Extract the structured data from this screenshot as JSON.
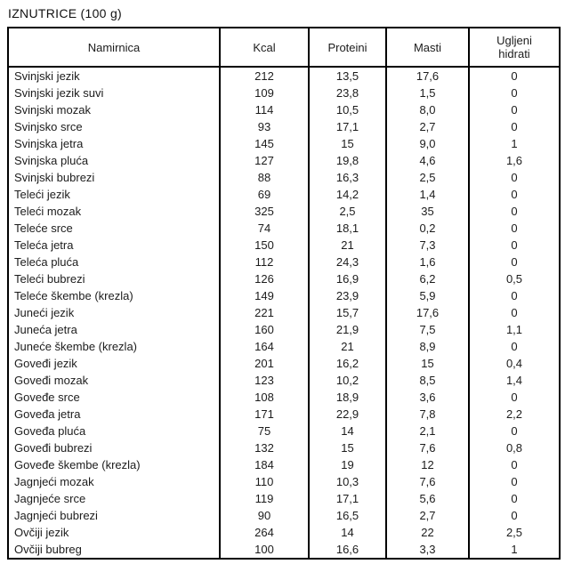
{
  "title": "IZNUTRICE (100 g)",
  "table": {
    "columns": [
      "Namirnica",
      "Kcal",
      "Proteini",
      "Masti",
      "Ugljeni hidrati"
    ],
    "rows": [
      [
        "Svinjski jezik",
        "212",
        "13,5",
        "17,6",
        "0"
      ],
      [
        "Svinjski jezik suvi",
        "109",
        "23,8",
        "1,5",
        "0"
      ],
      [
        "Svinjski mozak",
        "114",
        "10,5",
        "8,0",
        "0"
      ],
      [
        "Svinjsko srce",
        "93",
        "17,1",
        "2,7",
        "0"
      ],
      [
        "Svinjska jetra",
        "145",
        "15",
        "9,0",
        "1"
      ],
      [
        "Svinjska pluća",
        "127",
        "19,8",
        "4,6",
        "1,6"
      ],
      [
        "Svinjski bubrezi",
        "88",
        "16,3",
        "2,5",
        "0"
      ],
      [
        "Teleći jezik",
        "69",
        "14,2",
        "1,4",
        "0"
      ],
      [
        "Teleći mozak",
        "325",
        "2,5",
        "35",
        "0"
      ],
      [
        "Teleće srce",
        "74",
        "18,1",
        "0,2",
        "0"
      ],
      [
        "Teleća jetra",
        "150",
        "21",
        "7,3",
        "0"
      ],
      [
        "Teleća pluća",
        "112",
        "24,3",
        "1,6",
        "0"
      ],
      [
        "Teleći bubrezi",
        "126",
        "16,9",
        "6,2",
        "0,5"
      ],
      [
        "Teleće škembe (krezla)",
        "149",
        "23,9",
        "5,9",
        "0"
      ],
      [
        "Juneći jezik",
        "221",
        "15,7",
        "17,6",
        "0"
      ],
      [
        "Juneća jetra",
        "160",
        "21,9",
        "7,5",
        "1,1"
      ],
      [
        "Juneće škembe (krezla)",
        "164",
        "21",
        "8,9",
        "0"
      ],
      [
        "Goveđi jezik",
        "201",
        "16,2",
        "15",
        "0,4"
      ],
      [
        "Goveđi mozak",
        "123",
        "10,2",
        "8,5",
        "1,4"
      ],
      [
        "Goveđe srce",
        "108",
        "18,9",
        "3,6",
        "0"
      ],
      [
        "Goveđa jetra",
        "171",
        "22,9",
        "7,8",
        "2,2"
      ],
      [
        "Goveđa pluća",
        "75",
        "14",
        "2,1",
        "0"
      ],
      [
        "Goveđi bubrezi",
        "132",
        "15",
        "7,6",
        "0,8"
      ],
      [
        "Goveđe škembe (krezla)",
        "184",
        "19",
        "12",
        "0"
      ],
      [
        "Jagnjeći mozak",
        "110",
        "10,3",
        "7,6",
        "0"
      ],
      [
        "Jagnjeće srce",
        "119",
        "17,1",
        "5,6",
        "0"
      ],
      [
        "Jagnjeći bubrezi",
        "90",
        "16,5",
        "2,7",
        "0"
      ],
      [
        "Ovčiji jezik",
        "264",
        "14",
        "22",
        "2,5"
      ],
      [
        "Ovčiji bubreg",
        "100",
        "16,6",
        "3,3",
        "1"
      ]
    ]
  }
}
